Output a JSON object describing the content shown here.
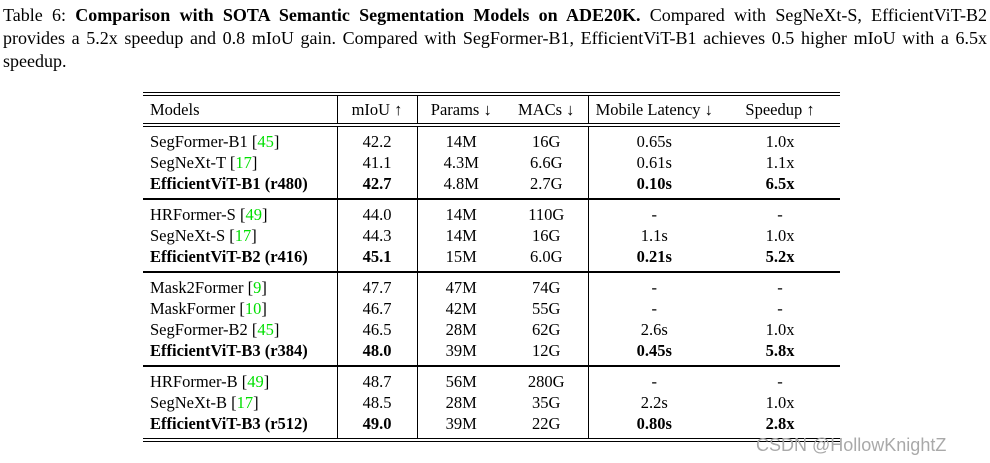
{
  "caption": {
    "prefix": "Table 6: ",
    "bold": "Comparison with SOTA Semantic Segmentation Models on ADE20K.",
    "rest": " Compared with SegNeXt-S, EfficientViT-B2 provides a 5.2x speedup and 0.8 mIoU gain. Compared with SegFormer-B1, EfficientViT-B1 achieves 0.5 higher mIoU with a 6.5x speedup."
  },
  "table": {
    "columns": [
      {
        "key": "models",
        "label": "Models"
      },
      {
        "key": "miou",
        "label": "mIoU ↑"
      },
      {
        "key": "params",
        "label": "Params ↓"
      },
      {
        "key": "macs",
        "label": "MACs ↓"
      },
      {
        "key": "latency",
        "label": "Mobile Latency ↓"
      },
      {
        "key": "speedup",
        "label": "Speedup ↑"
      }
    ],
    "groups": [
      {
        "rows": [
          {
            "model": "SegFormer-B1",
            "cite": "45",
            "highlight": false,
            "values": [
              "42.2",
              "14M",
              "16G",
              "0.65s",
              "1.0x"
            ]
          },
          {
            "model": "SegNeXt-T",
            "cite": "17",
            "highlight": false,
            "values": [
              "41.1",
              "4.3M",
              "6.6G",
              "0.61s",
              "1.1x"
            ]
          },
          {
            "model": "EfficientViT-B1 (r480)",
            "cite": null,
            "highlight": true,
            "values": [
              "42.7",
              "4.8M",
              "2.7G",
              "0.10s",
              "6.5x"
            ]
          }
        ]
      },
      {
        "rows": [
          {
            "model": "HRFormer-S",
            "cite": "49",
            "highlight": false,
            "values": [
              "44.0",
              "14M",
              "110G",
              "-",
              "-"
            ]
          },
          {
            "model": "SegNeXt-S",
            "cite": "17",
            "highlight": false,
            "values": [
              "44.3",
              "14M",
              "16G",
              "1.1s",
              "1.0x"
            ]
          },
          {
            "model": "EfficientViT-B2 (r416)",
            "cite": null,
            "highlight": true,
            "values": [
              "45.1",
              "15M",
              "6.0G",
              "0.21s",
              "5.2x"
            ]
          }
        ]
      },
      {
        "rows": [
          {
            "model": "Mask2Former",
            "cite": "9",
            "highlight": false,
            "values": [
              "47.7",
              "47M",
              "74G",
              "-",
              "-"
            ]
          },
          {
            "model": "MaskFormer",
            "cite": "10",
            "highlight": false,
            "values": [
              "46.7",
              "42M",
              "55G",
              "-",
              "-"
            ]
          },
          {
            "model": "SegFormer-B2",
            "cite": "45",
            "highlight": false,
            "values": [
              "46.5",
              "28M",
              "62G",
              "2.6s",
              "1.0x"
            ]
          },
          {
            "model": "EfficientViT-B3 (r384)",
            "cite": null,
            "highlight": true,
            "values": [
              "48.0",
              "39M",
              "12G",
              "0.45s",
              "5.8x"
            ]
          }
        ]
      },
      {
        "rows": [
          {
            "model": "HRFormer-B",
            "cite": "49",
            "highlight": false,
            "values": [
              "48.7",
              "56M",
              "280G",
              "-",
              "-"
            ]
          },
          {
            "model": "SegNeXt-B",
            "cite": "17",
            "highlight": false,
            "values": [
              "48.5",
              "28M",
              "35G",
              "2.2s",
              "1.0x"
            ]
          },
          {
            "model": "EfficientViT-B3 (r512)",
            "cite": null,
            "highlight": true,
            "values": [
              "49.0",
              "39M",
              "22G",
              "0.80s",
              "2.8x"
            ]
          }
        ]
      }
    ]
  },
  "watermark": {
    "text": "CSDN @HollowKnightZ"
  },
  "colors": {
    "citation": "#00DF00",
    "watermark": "#a9a9a9",
    "ink": "#000000"
  }
}
